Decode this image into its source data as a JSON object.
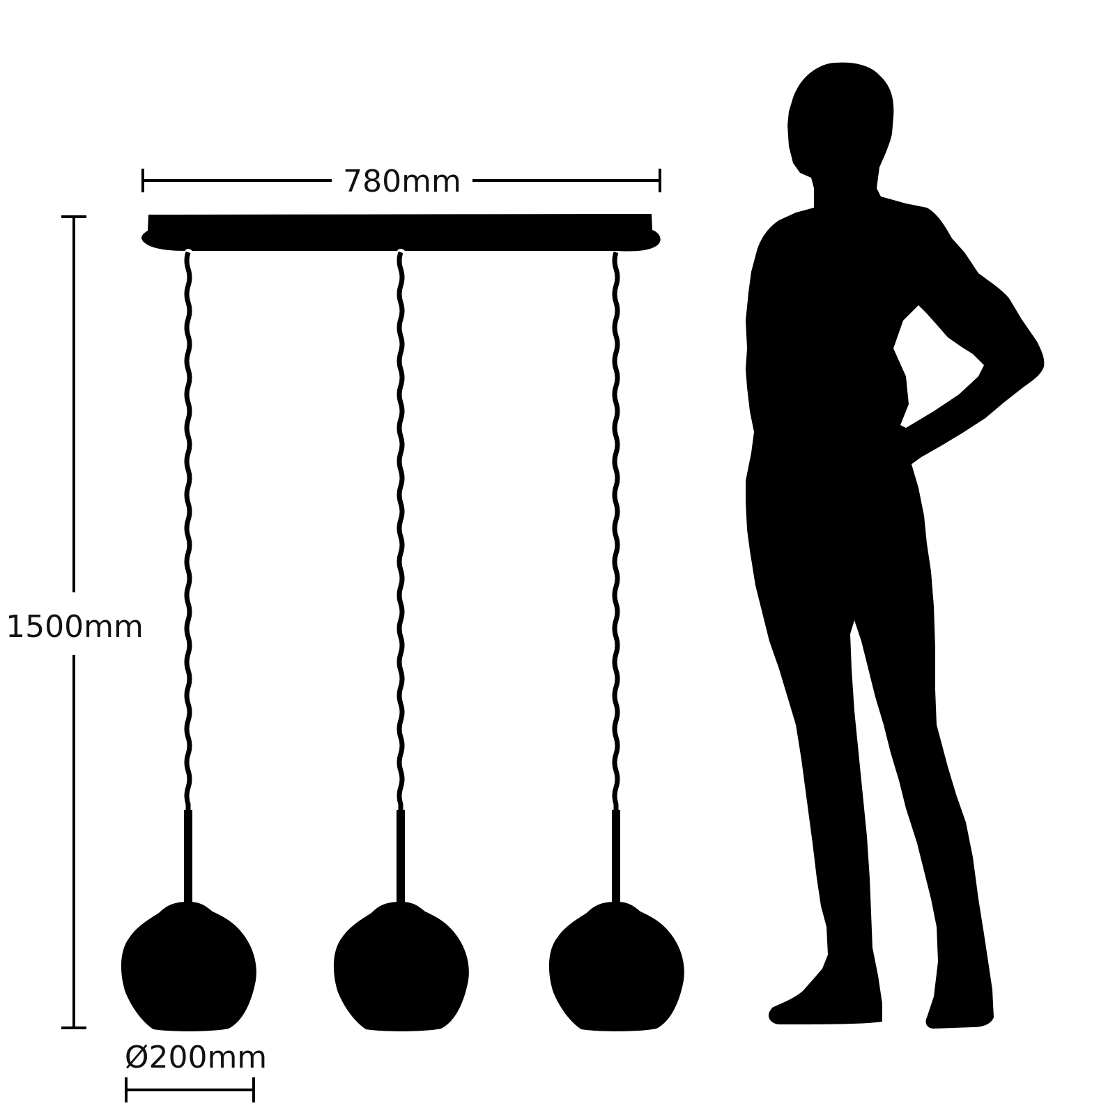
{
  "dimensions": {
    "width_label": "780mm",
    "height_label": "1500mm",
    "diameter_label": "Ø200mm"
  },
  "figure": {
    "fill_color": "#000000",
    "background_color": "#ffffff",
    "lamp_count": 3,
    "shade_shape": "globe",
    "cable_style": "twisted",
    "scale_reference": "human-silhouette"
  }
}
